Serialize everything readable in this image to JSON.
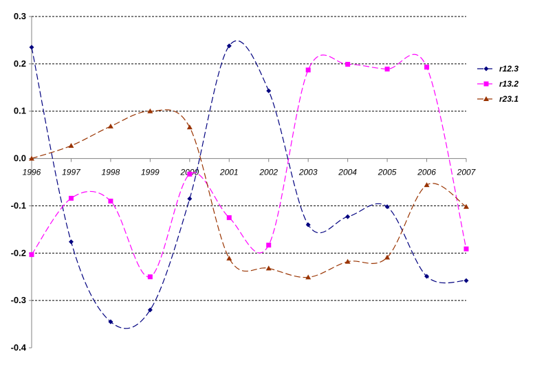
{
  "chart_data": {
    "type": "line",
    "title": "",
    "xlabel": "",
    "ylabel": "",
    "categories": [
      "1996",
      "1997",
      "1998",
      "1999",
      "2000",
      "2001",
      "2002",
      "2003",
      "2004",
      "2005",
      "2006",
      "2007"
    ],
    "ylim": [
      -0.4,
      0.3
    ],
    "yticks": [
      {
        "value": 0.3,
        "label": "0.3"
      },
      {
        "value": 0.2,
        "label": "0.2"
      },
      {
        "value": 0.1,
        "label": "0.1"
      },
      {
        "value": 0.0,
        "label": "0.0"
      },
      {
        "value": -0.1,
        "label": "-0.1"
      },
      {
        "value": -0.2,
        "label": "-0.2"
      },
      {
        "value": -0.3,
        "label": "-0.3"
      },
      {
        "value": -0.4,
        "label": "-0.4"
      }
    ],
    "grid": "horizontal-dashed",
    "legend_position": "right",
    "series": [
      {
        "name": "r12.3",
        "color": "#00007f",
        "marker": "diamond",
        "values": [
          0.235,
          -0.176,
          -0.345,
          -0.32,
          -0.085,
          0.238,
          0.143,
          -0.14,
          -0.123,
          -0.102,
          -0.249,
          -0.258
        ]
      },
      {
        "name": "r13.2",
        "color": "#ff00ff",
        "marker": "square",
        "values": [
          -0.203,
          -0.084,
          -0.09,
          -0.25,
          -0.033,
          -0.125,
          -0.183,
          0.187,
          0.199,
          0.189,
          0.193,
          -0.191
        ]
      },
      {
        "name": "r23.1",
        "color": "#993300",
        "marker": "triangle",
        "values": [
          0.0,
          0.027,
          0.068,
          0.1,
          0.066,
          -0.211,
          -0.232,
          -0.251,
          -0.218,
          -0.209,
          -0.056,
          -0.102
        ]
      }
    ]
  }
}
